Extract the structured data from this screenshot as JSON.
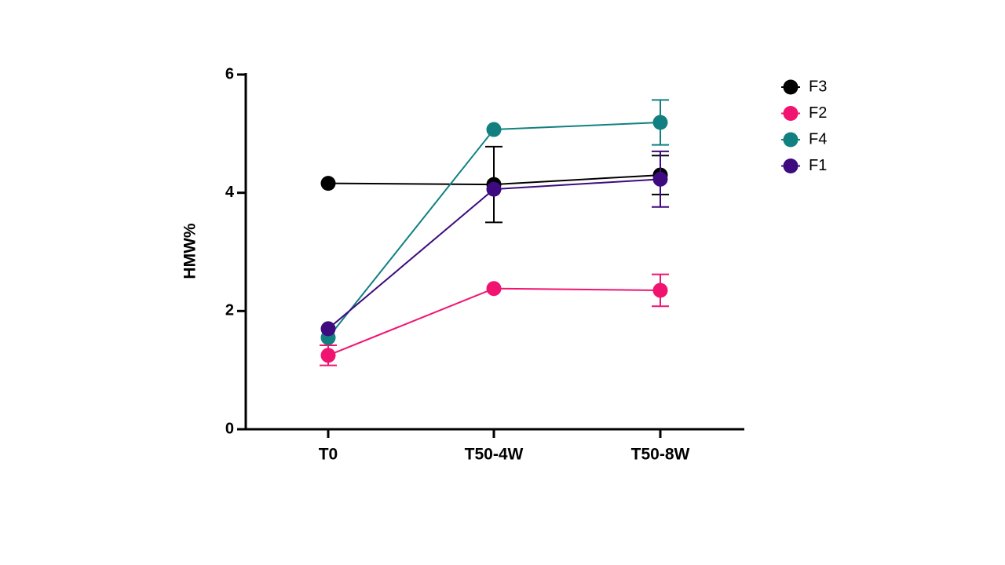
{
  "chart_data": {
    "type": "line",
    "title": "",
    "xlabel": "",
    "ylabel": "HMW%",
    "categories": [
      "T0",
      "T50-4W",
      "T50-8W"
    ],
    "ylim": [
      0,
      6
    ],
    "yticks": [
      0,
      2,
      4,
      6
    ],
    "grid": false,
    "legend_position": "top-right",
    "series": [
      {
        "name": "F3",
        "color": "#000000",
        "values": [
          4.16,
          4.14,
          4.3
        ],
        "error": [
          0,
          0.64,
          0.33
        ]
      },
      {
        "name": "F2",
        "color": "#F01470",
        "values": [
          1.25,
          2.38,
          2.35
        ],
        "error": [
          0.17,
          0,
          0.27
        ]
      },
      {
        "name": "F4",
        "color": "#128080",
        "values": [
          1.55,
          5.07,
          5.19
        ],
        "error": [
          0,
          0,
          0.38
        ]
      },
      {
        "name": "F1",
        "color": "#3E0A80",
        "values": [
          1.7,
          4.06,
          4.23
        ],
        "error": [
          0,
          0,
          0.47
        ]
      }
    ]
  }
}
